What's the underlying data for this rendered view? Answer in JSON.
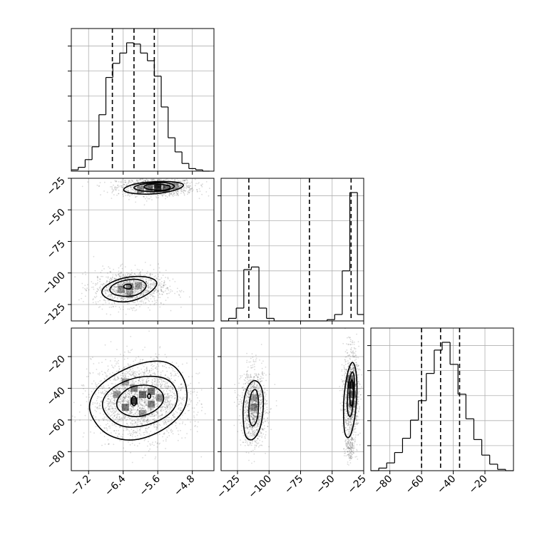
{
  "chart_data": {
    "type": "corner",
    "grid": true,
    "colors": {
      "line": "#000000",
      "grid": "#b0b0b0",
      "points": "#333333"
    },
    "parameters": [
      {
        "id": "p0",
        "range": [
          -7.6,
          -4.3
        ],
        "ticks": [
          -7.2,
          -6.4,
          -5.6,
          -4.8
        ],
        "tick_labels": [
          "−7.2",
          "−6.4",
          "−5.6",
          "−4.8"
        ],
        "quantiles": [
          -6.65,
          -6.15,
          -5.68
        ]
      },
      {
        "id": "p1",
        "range": [
          -138,
          -25
        ],
        "ticks": [
          -125,
          -100,
          -75,
          -50,
          -25
        ],
        "tick_labels": [
          "−125",
          "−100",
          "−75",
          "−50",
          "−25"
        ],
        "quantiles": [
          -116,
          -68,
          -35
        ]
      },
      {
        "id": "p2",
        "range": [
          -92,
          -2
        ],
        "ticks": [
          -80,
          -60,
          -40,
          -20
        ],
        "tick_labels": [
          "−80",
          "−60",
          "−40",
          "−20"
        ],
        "quantiles": [
          -60,
          -48,
          -36
        ]
      }
    ],
    "histograms": [
      {
        "param": "p0",
        "bin_edges": [
          -7.6,
          -7.44,
          -7.28,
          -7.12,
          -6.96,
          -6.8,
          -6.64,
          -6.48,
          -6.32,
          -6.16,
          -6.0,
          -5.84,
          -5.68,
          -5.52,
          -5.36,
          -5.2,
          -5.04,
          -4.88,
          -4.72,
          -4.56,
          -4.4
        ],
        "counts": [
          0.01,
          0.03,
          0.09,
          0.19,
          0.44,
          0.73,
          0.84,
          0.92,
          1.0,
          0.99,
          0.92,
          0.86,
          0.74,
          0.5,
          0.26,
          0.15,
          0.06,
          0.02,
          0.01,
          0.0
        ]
      },
      {
        "param": "p1",
        "bin_edges": [
          -138,
          -132,
          -126,
          -120,
          -114,
          -108,
          -102,
          -96,
          -90,
          -84,
          -78,
          -72,
          -66,
          -60,
          -54,
          -48,
          -42,
          -36,
          -30,
          -25
        ],
        "counts": [
          0.0,
          0.02,
          0.1,
          0.4,
          0.42,
          0.1,
          0.02,
          0.0,
          0.0,
          0.0,
          0.0,
          0.0,
          0.0,
          0.0,
          0.01,
          0.05,
          0.39,
          1.0,
          0.05
        ]
      },
      {
        "param": "p2",
        "bin_edges": [
          -92,
          -87,
          -82,
          -77,
          -72,
          -67,
          -62,
          -57,
          -52,
          -47,
          -42,
          -37,
          -32,
          -27,
          -22,
          -17,
          -12,
          -7,
          -2
        ],
        "counts": [
          0.0,
          0.02,
          0.06,
          0.14,
          0.25,
          0.39,
          0.54,
          0.75,
          0.93,
          0.99,
          0.82,
          0.59,
          0.4,
          0.24,
          0.12,
          0.05,
          0.01,
          0.0
        ]
      }
    ],
    "pairs": [
      {
        "x": "p0",
        "y": "p1",
        "density_cells": [
          [
            -5.6,
            -33,
            1.0
          ],
          [
            -5.4,
            -33,
            0.6
          ],
          [
            -5.8,
            -33,
            0.5
          ],
          [
            -5.6,
            -30,
            0.4
          ],
          [
            -6.0,
            -34,
            0.3
          ],
          [
            -5.2,
            -31,
            0.3
          ],
          [
            -6.25,
            -111,
            0.5
          ],
          [
            -6.45,
            -113,
            0.4
          ],
          [
            -6.05,
            -110,
            0.3
          ],
          [
            -6.25,
            -117,
            0.3
          ]
        ],
        "contours": [
          [
            [
              -6.25,
              -37
            ],
            [
              -5.7,
              -38
            ],
            [
              -5.1,
              -34
            ],
            [
              -4.95,
              -29
            ],
            [
              -5.45,
              -27
            ],
            [
              -6.15,
              -29
            ],
            [
              -6.45,
              -34
            ]
          ],
          [
            [
              -6.05,
              -35
            ],
            [
              -5.55,
              -36
            ],
            [
              -5.15,
              -32
            ],
            [
              -5.35,
              -28
            ],
            [
              -5.9,
              -29
            ],
            [
              -6.2,
              -32
            ]
          ],
          [
            [
              -5.85,
              -34
            ],
            [
              -5.4,
              -35
            ],
            [
              -5.25,
              -31
            ],
            [
              -5.7,
              -29
            ],
            [
              -5.95,
              -31
            ]
          ],
          [
            [
              -6.8,
              -121
            ],
            [
              -6.3,
              -124
            ],
            [
              -5.8,
              -117
            ],
            [
              -5.55,
              -107
            ],
            [
              -5.9,
              -102
            ],
            [
              -6.5,
              -104
            ],
            [
              -6.95,
              -113
            ]
          ],
          [
            [
              -6.6,
              -118
            ],
            [
              -6.1,
              -119
            ],
            [
              -5.8,
              -110
            ],
            [
              -6.05,
              -104
            ],
            [
              -6.55,
              -107
            ],
            [
              -6.75,
              -113
            ]
          ],
          [
            [
              -6.4,
              -112
            ],
            [
              -6.22,
              -113
            ],
            [
              -6.2,
              -109
            ],
            [
              -6.38,
              -109
            ]
          ]
        ],
        "clusters": [
          {
            "cx": -5.65,
            "cy": -32,
            "sx": 0.45,
            "sy": 3.5,
            "n": 1100
          },
          {
            "cx": -6.25,
            "cy": -112,
            "sx": 0.42,
            "sy": 7,
            "n": 1100
          }
        ]
      },
      {
        "x": "p0",
        "y": "p2",
        "density_cells": [
          [
            -6.15,
            -48,
            1.0
          ],
          [
            -5.95,
            -44,
            0.7
          ],
          [
            -6.35,
            -52,
            0.6
          ],
          [
            -5.75,
            -42,
            0.6
          ],
          [
            -6.15,
            -40,
            0.5
          ],
          [
            -5.75,
            -50,
            0.5
          ],
          [
            -6.55,
            -44,
            0.4
          ],
          [
            -5.55,
            -46,
            0.4
          ],
          [
            -6.35,
            -36,
            0.3
          ],
          [
            -5.95,
            -56,
            0.3
          ]
        ],
        "contours": [
          [
            [
              -7.15,
              -58
            ],
            [
              -6.8,
              -70
            ],
            [
              -6.15,
              -74
            ],
            [
              -5.4,
              -66
            ],
            [
              -4.9,
              -52
            ],
            [
              -4.95,
              -34
            ],
            [
              -5.35,
              -22
            ],
            [
              -6.1,
              -24
            ],
            [
              -6.9,
              -36
            ],
            [
              -7.2,
              -48
            ]
          ],
          [
            [
              -6.85,
              -56
            ],
            [
              -6.45,
              -65
            ],
            [
              -5.85,
              -64
            ],
            [
              -5.25,
              -56
            ],
            [
              -5.1,
              -44
            ],
            [
              -5.35,
              -33
            ],
            [
              -6.0,
              -32
            ],
            [
              -6.6,
              -38
            ],
            [
              -6.9,
              -47
            ]
          ],
          [
            [
              -6.55,
              -54
            ],
            [
              -6.15,
              -59
            ],
            [
              -5.65,
              -55
            ],
            [
              -5.4,
              -46
            ],
            [
              -5.65,
              -38
            ],
            [
              -6.2,
              -38
            ],
            [
              -6.55,
              -46
            ]
          ],
          [
            [
              -6.23,
              -48
            ],
            [
              -6.15,
              -44
            ],
            [
              -6.07,
              -48
            ],
            [
              -6.15,
              -52
            ]
          ],
          [
            [
              -5.85,
              -45
            ],
            [
              -5.8,
              -43
            ],
            [
              -5.75,
              -45
            ],
            [
              -5.8,
              -47
            ]
          ]
        ],
        "clusters": [
          {
            "cx": -6.0,
            "cy": -47,
            "sx": 0.55,
            "sy": 12,
            "n": 2200
          }
        ]
      },
      {
        "x": "p1",
        "y": "p2",
        "density_cells": [
          [
            -35,
            -38,
            1.0
          ],
          [
            -34,
            -44,
            0.6
          ],
          [
            -36,
            -34,
            0.5
          ],
          [
            -34,
            -50,
            0.4
          ],
          [
            -112,
            -52,
            0.4
          ],
          [
            -112,
            -46,
            0.3
          ]
        ],
        "contours": [
          [
            [
              -120,
              -66
            ],
            [
              -118,
              -72
            ],
            [
              -112,
              -73
            ],
            [
              -106,
              -64
            ],
            [
              -104,
              -48
            ],
            [
              -106,
              -38
            ],
            [
              -112,
              -34
            ],
            [
              -118,
              -40
            ],
            [
              -121,
              -52
            ]
          ],
          [
            [
              -116,
              -60
            ],
            [
              -113,
              -65
            ],
            [
              -109,
              -60
            ],
            [
              -108,
              -48
            ],
            [
              -110,
              -40
            ],
            [
              -114,
              -42
            ],
            [
              -116,
              -50
            ]
          ],
          [
            [
              -40,
              -70
            ],
            [
              -36,
              -72
            ],
            [
              -32,
              -60
            ],
            [
              -30,
              -42
            ],
            [
              -31,
              -28
            ],
            [
              -34,
              -22
            ],
            [
              -38,
              -30
            ],
            [
              -41,
              -46
            ],
            [
              -41,
              -60
            ]
          ],
          [
            [
              -38,
              -56
            ],
            [
              -35,
              -59
            ],
            [
              -33,
              -48
            ],
            [
              -32,
              -34
            ],
            [
              -34,
              -28
            ],
            [
              -37,
              -36
            ],
            [
              -38,
              -46
            ]
          ],
          [
            [
              -36,
              -50
            ],
            [
              -34,
              -52
            ],
            [
              -33,
              -42
            ],
            [
              -34,
              -33
            ],
            [
              -36,
              -38
            ]
          ]
        ],
        "clusters": [
          {
            "cx": -112,
            "cy": -52,
            "sx": 5,
            "sy": 12,
            "n": 1100
          },
          {
            "cx": -35,
            "cy": -44,
            "sx": 3,
            "sy": 14,
            "n": 1100
          },
          {
            "cx": -36,
            "cy": -78,
            "sx": 2,
            "sy": 5,
            "n": 150
          }
        ]
      }
    ]
  }
}
